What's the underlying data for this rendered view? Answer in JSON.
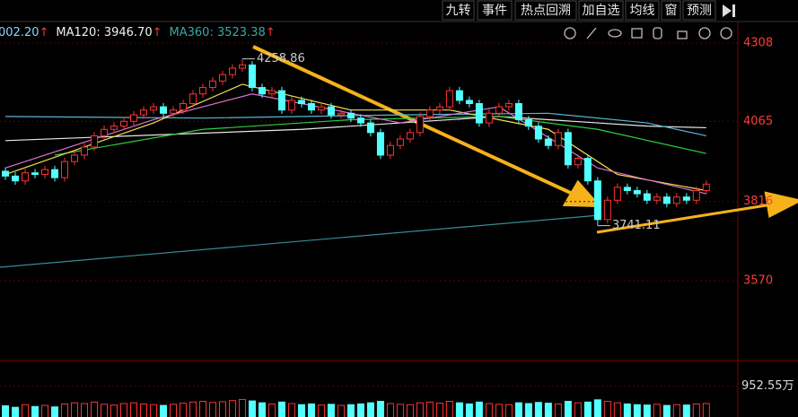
{
  "toolbar": [
    "九转",
    "事件",
    "热点回溯",
    "加自选",
    "均线",
    "窗",
    "预测"
  ],
  "legend": [
    {
      "text": "002.20",
      "color": "#8fd3ff",
      "arrow": "↑"
    },
    {
      "text": "MA120: 3946.70",
      "color": "#f0f0f0",
      "arrow": "↑"
    },
    {
      "text": "MA360: 3523.38",
      "color": "#3ea6a6",
      "arrow": "↑"
    }
  ],
  "chart_data": {
    "type": "candlestick",
    "open": [
      3910,
      3895,
      3880,
      3905,
      3900,
      3915,
      3890,
      3940,
      3960,
      3985,
      4020,
      4040,
      4050,
      4065,
      4085,
      4100,
      4110,
      4090,
      4100,
      4120,
      4150,
      4170,
      4190,
      4210,
      4230,
      4240,
      4170,
      4150,
      4160,
      4100,
      4130,
      4120,
      4100,
      4110,
      4085,
      4090,
      4075,
      4060,
      4030,
      3960,
      3990,
      4010,
      4030,
      4080,
      4100,
      4110,
      4160,
      4130,
      4120,
      4060,
      4090,
      4110,
      4120,
      4070,
      4050,
      4010,
      3990,
      4030,
      3930,
      3950,
      3880,
      3760,
      3820,
      3860,
      3850,
      3840,
      3820,
      3830,
      3810,
      3830,
      3820,
      3850
    ],
    "high": [
      3922,
      3907,
      3917,
      3917,
      3927,
      3927,
      3952,
      3972,
      3997,
      4032,
      4052,
      4062,
      4077,
      4097,
      4112,
      4122,
      4122,
      4112,
      4132,
      4162,
      4182,
      4202,
      4222,
      4242,
      4258.86,
      4252,
      4182,
      4172,
      4172,
      4142,
      4142,
      4132,
      4122,
      4122,
      4102,
      4102,
      4087,
      4072,
      4042,
      4002,
      4022,
      4042,
      4092,
      4112,
      4122,
      4172,
      4172,
      4142,
      4132,
      4102,
      4122,
      4132,
      4132,
      4082,
      4062,
      4022,
      4042,
      4042,
      3962,
      3962,
      3892,
      3832,
      3872,
      3872,
      3862,
      3852,
      3842,
      3842,
      3842,
      3842,
      3862,
      3882
    ],
    "low": [
      3883,
      3868,
      3868,
      3888,
      3888,
      3878,
      3878,
      3928,
      3948,
      3973,
      4008,
      4028,
      4038,
      4053,
      4073,
      4088,
      4078,
      4078,
      4088,
      4108,
      4138,
      4158,
      4178,
      4198,
      4218,
      4158,
      4138,
      4138,
      4088,
      4088,
      4108,
      4088,
      4088,
      4073,
      4073,
      4063,
      4048,
      4018,
      3948,
      3948,
      3978,
      3998,
      4018,
      4068,
      4088,
      4098,
      4118,
      4108,
      4048,
      4048,
      4078,
      4098,
      4058,
      4038,
      3998,
      3978,
      3978,
      3918,
      3918,
      3868,
      3741.11,
      3748,
      3808,
      3838,
      3828,
      3808,
      3808,
      3798,
      3798,
      3808,
      3808,
      3838
    ],
    "close": [
      3895,
      3880,
      3905,
      3900,
      3915,
      3890,
      3940,
      3960,
      3985,
      4020,
      4040,
      4050,
      4065,
      4085,
      4100,
      4110,
      4090,
      4100,
      4120,
      4150,
      4170,
      4190,
      4210,
      4230,
      4240,
      4170,
      4150,
      4160,
      4100,
      4130,
      4120,
      4100,
      4110,
      4085,
      4090,
      4075,
      4060,
      4030,
      3960,
      3990,
      4010,
      4030,
      4080,
      4100,
      4110,
      4160,
      4130,
      4120,
      4060,
      4090,
      4110,
      4120,
      4070,
      4050,
      4010,
      3990,
      4030,
      3930,
      3950,
      3880,
      3760,
      3820,
      3860,
      3850,
      3840,
      3820,
      3830,
      3810,
      3830,
      3820,
      3850,
      3870
    ],
    "volume": [
      420,
      380,
      450,
      400,
      430,
      390,
      470,
      500,
      480,
      520,
      460,
      440,
      480,
      500,
      470,
      450,
      430,
      460,
      490,
      520,
      540,
      510,
      530,
      560,
      590,
      550,
      500,
      470,
      520,
      480,
      450,
      470,
      440,
      460,
      430,
      450,
      470,
      500,
      540,
      480,
      460,
      450,
      500,
      520,
      490,
      540,
      500,
      470,
      520,
      480,
      460,
      450,
      500,
      480,
      510,
      490,
      470,
      540,
      500,
      520,
      580,
      540,
      500,
      470,
      450,
      440,
      460,
      430,
      450,
      440,
      470,
      480
    ],
    "ylim": [
      3328,
      4372
    ],
    "yticks": [
      3570,
      3816,
      4065,
      4308
    ],
    "xlim": [
      -0.55,
      74.2
    ],
    "volume_ylim": [
      0,
      1560
    ],
    "volume_ticks": [
      {
        "value": 952.55,
        "label": "952.55万"
      }
    ],
    "annotations": [
      {
        "text": "4258.86",
        "index": 24,
        "value": 4258.86
      },
      {
        "text": "3741.11",
        "index": 60,
        "value": 3741.11
      }
    ],
    "overlays": [
      {
        "color": "#e8e8e8",
        "x": [
          0,
          30,
          50,
          65,
          71
        ],
        "values": [
          4005,
          4040,
          4080,
          4050,
          4045
        ]
      },
      {
        "color": "#5ab4d8",
        "x": [
          0,
          20,
          40,
          55,
          65,
          71
        ],
        "values": [
          4080,
          4075,
          4085,
          4090,
          4060,
          4020
        ]
      },
      {
        "color": "#2ecc40",
        "x": [
          5,
          20,
          35,
          50,
          60,
          71
        ],
        "values": [
          3960,
          4040,
          4070,
          4080,
          4040,
          3965
        ]
      },
      {
        "color": "#f2e24a",
        "x": [
          0,
          15,
          24,
          35,
          45,
          55,
          62,
          71
        ],
        "values": [
          3900,
          4060,
          4180,
          4100,
          4100,
          4040,
          3900,
          3850
        ]
      },
      {
        "color": "#e070d0",
        "x": [
          0,
          15,
          25,
          40,
          50,
          60,
          71
        ],
        "values": [
          3920,
          4070,
          4150,
          4060,
          4110,
          3920,
          3840
        ]
      },
      {
        "color": "#3a8a9a",
        "x": [
          -0.55,
          60
        ],
        "values": [
          3612,
          3773
        ]
      }
    ],
    "up_color": "#ff3232",
    "down_color": "#54ffff",
    "axis_color": "#ff3c3c",
    "grid": true
  }
}
